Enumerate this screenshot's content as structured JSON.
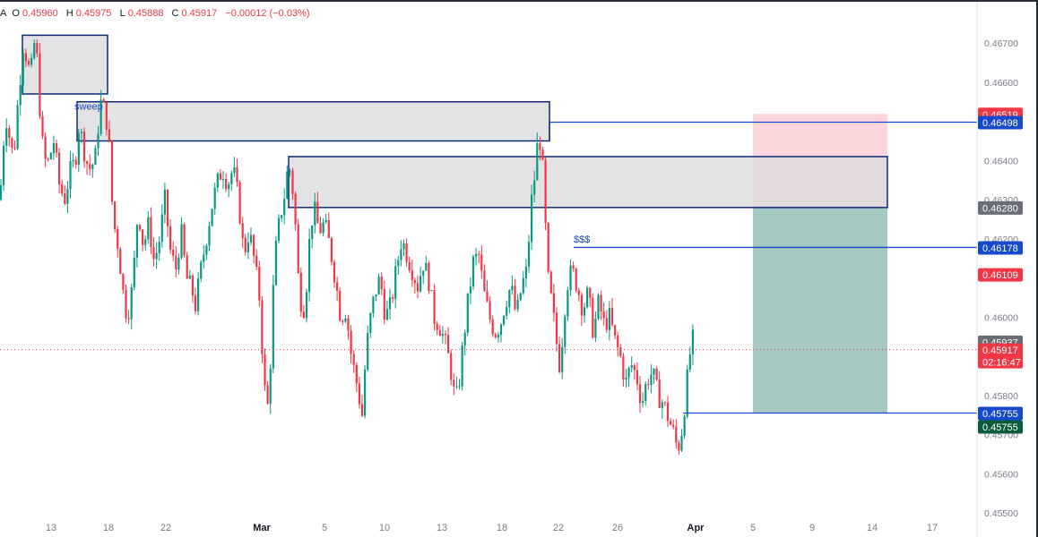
{
  "header": {
    "prefix": "A",
    "open_label": "O",
    "open": "0.45960",
    "high_label": "H",
    "high": "0.45975",
    "low_label": "L",
    "low": "0.45888",
    "close_label": "C",
    "close": "0.45917",
    "change": "−0.00012 (−0.03%)"
  },
  "colors": {
    "up": "#089981",
    "down": "#f23645",
    "zone_fill": "#d9d9de",
    "zone_border": "#0d2a7a",
    "level_line": "#1848cc",
    "target_zone": "#8fbcb3",
    "stop_zone": "#f9c9d0"
  },
  "chart_data": {
    "type": "candlestick",
    "title": "",
    "y_axis": {
      "ylim": [
        0.455,
        0.4673
      ],
      "ticks": [
        "0.46700",
        "0.46600",
        "0.46400",
        "0.46300",
        "0.46200",
        "0.46000",
        "0.45800",
        "0.45700",
        "0.45600",
        "0.45500"
      ],
      "tick_values": [
        0.467,
        0.466,
        0.464,
        0.463,
        0.462,
        0.46,
        0.458,
        0.457,
        0.456,
        0.455
      ]
    },
    "x_axis": {
      "ticks": [
        {
          "label": "13",
          "bold": false
        },
        {
          "label": "18",
          "bold": false
        },
        {
          "label": "22",
          "bold": false
        },
        {
          "label": "Mar",
          "bold": true
        },
        {
          "label": "5",
          "bold": false
        },
        {
          "label": "10",
          "bold": false
        },
        {
          "label": "13",
          "bold": false
        },
        {
          "label": "18",
          "bold": false
        },
        {
          "label": "22",
          "bold": false
        },
        {
          "label": "26",
          "bold": false
        },
        {
          "label": "Apr",
          "bold": true
        },
        {
          "label": "5",
          "bold": false
        },
        {
          "label": "9",
          "bold": false
        },
        {
          "label": "14",
          "bold": false
        },
        {
          "label": "17",
          "bold": false
        }
      ]
    },
    "price_path": [
      [
        0,
        0.463
      ],
      [
        4,
        0.4645
      ],
      [
        8,
        0.4652
      ],
      [
        12,
        0.4642
      ],
      [
        16,
        0.4643
      ],
      [
        20,
        0.4655
      ],
      [
        26,
        0.467
      ],
      [
        30,
        0.4666
      ],
      [
        34,
        0.4661
      ],
      [
        38,
        0.467
      ],
      [
        42,
        0.4665
      ],
      [
        46,
        0.4646
      ],
      [
        52,
        0.4638
      ],
      [
        60,
        0.4645
      ],
      [
        66,
        0.4634
      ],
      [
        72,
        0.463
      ],
      [
        78,
        0.4637
      ],
      [
        84,
        0.464
      ],
      [
        88,
        0.4649
      ],
      [
        92,
        0.4645
      ],
      [
        96,
        0.464
      ],
      [
        100,
        0.4638
      ],
      [
        106,
        0.464
      ],
      [
        112,
        0.4655
      ],
      [
        118,
        0.4652
      ],
      [
        122,
        0.4643
      ],
      [
        126,
        0.4625
      ],
      [
        132,
        0.4618
      ],
      [
        138,
        0.4605
      ],
      [
        142,
        0.46
      ],
      [
        148,
        0.4608
      ],
      [
        154,
        0.4628
      ],
      [
        160,
        0.4618
      ],
      [
        166,
        0.4624
      ],
      [
        172,
        0.4614
      ],
      [
        178,
        0.462
      ],
      [
        184,
        0.463
      ],
      [
        190,
        0.4617
      ],
      [
        196,
        0.4612
      ],
      [
        202,
        0.4622
      ],
      [
        208,
        0.461
      ],
      [
        214,
        0.4607
      ],
      [
        218,
        0.4603
      ],
      [
        224,
        0.4612
      ],
      [
        230,
        0.462
      ],
      [
        236,
        0.4628
      ],
      [
        242,
        0.4634
      ],
      [
        248,
        0.4638
      ],
      [
        254,
        0.4634
      ],
      [
        260,
        0.4638
      ],
      [
        266,
        0.463
      ],
      [
        272,
        0.4616
      ],
      [
        278,
        0.4622
      ],
      [
        284,
        0.4614
      ],
      [
        290,
        0.4604
      ],
      [
        294,
        0.4585
      ],
      [
        298,
        0.4575
      ],
      [
        302,
        0.459
      ],
      [
        306,
        0.4614
      ],
      [
        312,
        0.4625
      ],
      [
        318,
        0.4632
      ],
      [
        322,
        0.464
      ],
      [
        328,
        0.463
      ],
      [
        334,
        0.4605
      ],
      [
        340,
        0.4602
      ],
      [
        346,
        0.4622
      ],
      [
        350,
        0.4628
      ],
      [
        356,
        0.4622
      ],
      [
        362,
        0.4624
      ],
      [
        368,
        0.4618
      ],
      [
        374,
        0.461
      ],
      [
        380,
        0.46
      ],
      [
        386,
        0.4602
      ],
      [
        392,
        0.459
      ],
      [
        398,
        0.4583
      ],
      [
        404,
        0.4575
      ],
      [
        408,
        0.459
      ],
      [
        412,
        0.4598
      ],
      [
        418,
        0.4606
      ],
      [
        424,
        0.461
      ],
      [
        430,
        0.46
      ],
      [
        436,
        0.4603
      ],
      [
        442,
        0.4612
      ],
      [
        448,
        0.462
      ],
      [
        454,
        0.4616
      ],
      [
        460,
        0.4612
      ],
      [
        466,
        0.4608
      ],
      [
        472,
        0.4614
      ],
      [
        478,
        0.461
      ],
      [
        484,
        0.46
      ],
      [
        490,
        0.4598
      ],
      [
        496,
        0.4594
      ],
      [
        502,
        0.4588
      ],
      [
        508,
        0.4578
      ],
      [
        512,
        0.4583
      ],
      [
        516,
        0.4592
      ],
      [
        522,
        0.4604
      ],
      [
        528,
        0.4614
      ],
      [
        534,
        0.4616
      ],
      [
        540,
        0.4606
      ],
      [
        546,
        0.46
      ],
      [
        552,
        0.4596
      ],
      [
        558,
        0.4598
      ],
      [
        564,
        0.4604
      ],
      [
        570,
        0.4608
      ],
      [
        576,
        0.46
      ],
      [
        582,
        0.4608
      ],
      [
        588,
        0.4612
      ],
      [
        592,
        0.4628
      ],
      [
        596,
        0.4635
      ],
      [
        600,
        0.4645
      ],
      [
        604,
        0.4645
      ],
      [
        608,
        0.4625
      ],
      [
        612,
        0.4608
      ],
      [
        616,
        0.4603
      ],
      [
        620,
        0.4595
      ],
      [
        624,
        0.4588
      ],
      [
        628,
        0.4596
      ],
      [
        632,
        0.4608
      ],
      [
        638,
        0.4612
      ],
      [
        644,
        0.4608
      ],
      [
        650,
        0.4602
      ],
      [
        656,
        0.4606
      ],
      [
        662,
        0.4596
      ],
      [
        668,
        0.4604
      ],
      [
        674,
        0.4598
      ],
      [
        680,
        0.46
      ],
      [
        686,
        0.4594
      ],
      [
        692,
        0.459
      ],
      [
        698,
        0.4583
      ],
      [
        704,
        0.4588
      ],
      [
        710,
        0.4585
      ],
      [
        716,
        0.4578
      ],
      [
        722,
        0.4584
      ],
      [
        728,
        0.4586
      ],
      [
        734,
        0.458
      ],
      [
        740,
        0.4578
      ],
      [
        746,
        0.4574
      ],
      [
        752,
        0.457
      ],
      [
        756,
        0.4566
      ],
      [
        760,
        0.457
      ],
      [
        764,
        0.4578
      ],
      [
        768,
        0.4587
      ],
      [
        772,
        0.4595
      ],
      [
        775,
        0.4592
      ]
    ],
    "zones": [
      {
        "x0": 25,
        "x1": 120,
        "y0": 0.4672,
        "y1": 0.4657
      },
      {
        "x0": 86,
        "x1": 613,
        "y0": 0.4655,
        "y1": 0.4645
      },
      {
        "x0": 322,
        "x1": 990,
        "y0": 0.4641,
        "y1": 0.4628
      }
    ],
    "levels": [
      {
        "x0": 613,
        "x1": 1090,
        "value": 0.46498
      },
      {
        "x0": 640,
        "x1": 1090,
        "value": 0.46178
      },
      {
        "x0": 762,
        "x1": 1090,
        "value": 0.45755
      }
    ],
    "position": {
      "x0": 840,
      "x1": 990,
      "entry": 0.4628,
      "stop": 0.46519,
      "target": 0.45755
    },
    "annotations": [
      {
        "text": "sweep",
        "x": 83,
        "value": 0.4653
      },
      {
        "text": "$$$",
        "x": 640,
        "value": 0.4619
      }
    ],
    "current_price": 0.45917,
    "price_tags": [
      {
        "text": "0.46519",
        "value": 0.46519,
        "bg": "#f23645",
        "lines": 1
      },
      {
        "text": "0.46498",
        "value": 0.46498,
        "bg": "#1848cc",
        "lines": 1
      },
      {
        "text": "0.46280",
        "value": 0.4628,
        "bg": "#6a6d78",
        "lines": 1
      },
      {
        "text": "0.46178",
        "value": 0.46178,
        "bg": "#1848cc",
        "lines": 1
      },
      {
        "text": "0.46109",
        "value": 0.46109,
        "bg": "#f23645",
        "lines": 1
      },
      {
        "text": "0.45937",
        "value": 0.45937,
        "bg": "#6a6d78",
        "lines": 1
      },
      {
        "text": "0.45917",
        "value": 0.45917,
        "bg": "#f23645",
        "lines": 2,
        "sub": "02:16:47"
      },
      {
        "text": "0.45755",
        "value": 0.45755,
        "bg": "#1848cc",
        "lines": 1
      },
      {
        "text": "0.45755",
        "value": 0.45755,
        "bg": "#0a5c3c",
        "lines": 1,
        "offset": 1
      }
    ]
  }
}
